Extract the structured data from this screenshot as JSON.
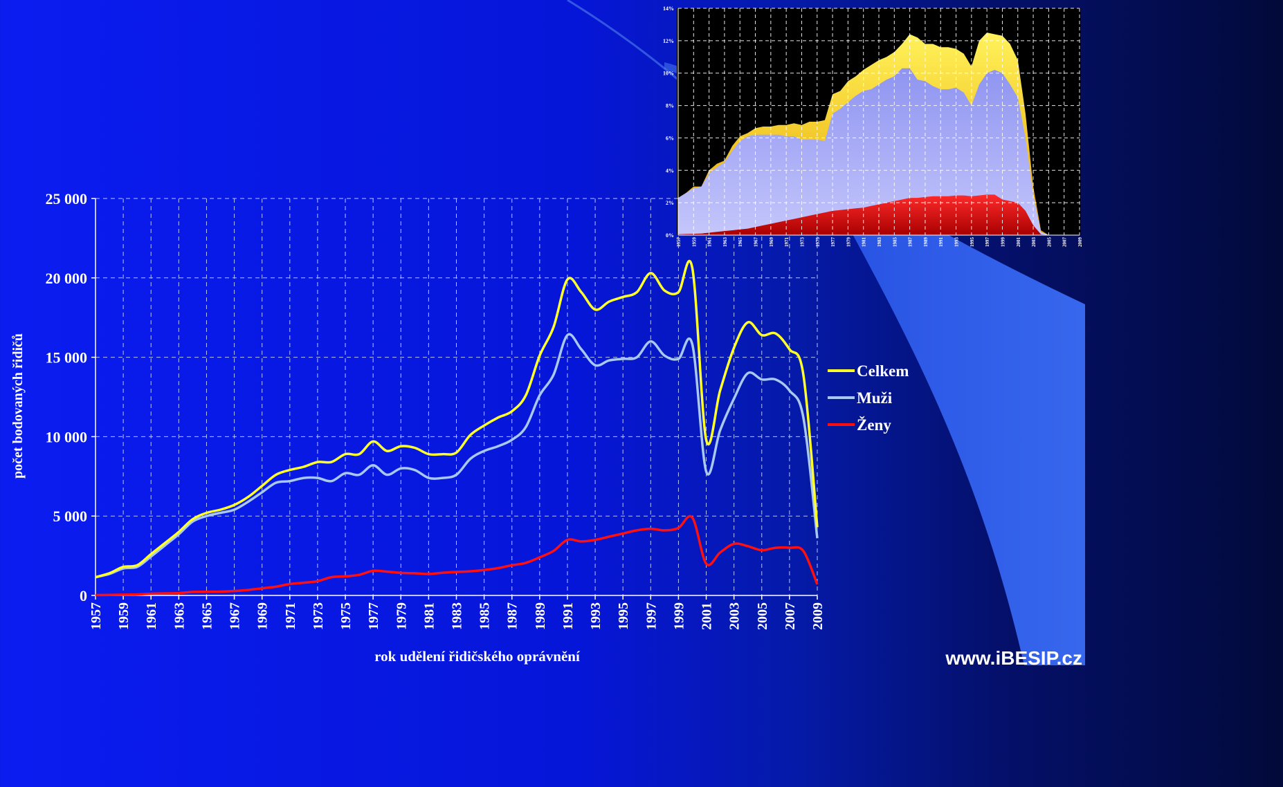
{
  "colors": {
    "celkem": "#ffff2a",
    "muzi": "#a8c8f0",
    "zeny": "#ff1010"
  },
  "chart_data": [
    {
      "type": "line",
      "xlabel": "rok udělení řidičského oprávnění",
      "ylabel": "počet bodovaných řidičů",
      "ylim": [
        0,
        25000
      ],
      "yticks": [
        "0",
        "5 000",
        "10 000",
        "15 000",
        "20 000",
        "25 000"
      ],
      "xlim": [
        1957,
        2009
      ],
      "xticks": [
        "1957",
        "1959",
        "1961",
        "1963",
        "1965",
        "1967",
        "1969",
        "1971",
        "1973",
        "1975",
        "1977",
        "1979",
        "1981",
        "1983",
        "1985",
        "1987",
        "1989",
        "1991",
        "1993",
        "1995",
        "1997",
        "1999",
        "2001",
        "2003",
        "2005",
        "2007",
        "2009"
      ],
      "grid": true,
      "legend": "right",
      "x": [
        1957,
        1958,
        1959,
        1960,
        1961,
        1962,
        1963,
        1964,
        1965,
        1966,
        1967,
        1968,
        1969,
        1970,
        1971,
        1972,
        1973,
        1974,
        1975,
        1976,
        1977,
        1978,
        1979,
        1980,
        1981,
        1982,
        1983,
        1984,
        1985,
        1986,
        1987,
        1988,
        1989,
        1990,
        1991,
        1992,
        1993,
        1994,
        1995,
        1996,
        1997,
        1998,
        1999,
        2000,
        2001,
        2002,
        2003,
        2004,
        2005,
        2006,
        2007,
        2008,
        2009
      ],
      "series": [
        {
          "name": "Celkem",
          "color_key": "celkem",
          "values": [
            1150,
            1400,
            1800,
            1900,
            2600,
            3300,
            4000,
            4800,
            5200,
            5400,
            5700,
            6200,
            6900,
            7600,
            7900,
            8100,
            8400,
            8400,
            8900,
            8900,
            9700,
            9100,
            9400,
            9300,
            8900,
            8900,
            9000,
            10100,
            10700,
            11200,
            11600,
            12600,
            15100,
            16900,
            19900,
            19100,
            18000,
            18500,
            18800,
            19100,
            20300,
            19200,
            19100,
            20600,
            9800,
            12900,
            15600,
            17200,
            16400,
            16500,
            15500,
            13900,
            4300
          ]
        },
        {
          "name": "Muži",
          "color_key": "muzi",
          "values": [
            1150,
            1350,
            1700,
            1800,
            2450,
            3150,
            3850,
            4650,
            5000,
            5200,
            5400,
            5900,
            6500,
            7100,
            7200,
            7400,
            7400,
            7200,
            7700,
            7600,
            8200,
            7600,
            8000,
            7900,
            7400,
            7400,
            7600,
            8600,
            9100,
            9400,
            9800,
            10600,
            12600,
            13900,
            16400,
            15500,
            14500,
            14800,
            14900,
            15000,
            16000,
            15100,
            14900,
            15800,
            7800,
            10400,
            12400,
            14000,
            13600,
            13600,
            12900,
            11200,
            3600
          ]
        },
        {
          "name": "Ženy",
          "color_key": "zeny",
          "values": [
            20,
            30,
            50,
            60,
            110,
            130,
            150,
            220,
            230,
            240,
            280,
            350,
            450,
            550,
            720,
            800,
            900,
            1150,
            1200,
            1300,
            1550,
            1500,
            1420,
            1400,
            1350,
            1430,
            1480,
            1520,
            1600,
            1720,
            1900,
            2050,
            2400,
            2800,
            3500,
            3400,
            3500,
            3700,
            3900,
            4100,
            4200,
            4100,
            4250,
            4900,
            2000,
            2700,
            3250,
            3100,
            2850,
            3000,
            3000,
            2800,
            700
          ]
        }
      ]
    },
    {
      "type": "area",
      "ylim": [
        0,
        14
      ],
      "yticks": [
        "0%",
        "2%",
        "4%",
        "6%",
        "8%",
        "10%",
        "12%",
        "14%"
      ],
      "xlim": [
        1957,
        2009
      ],
      "xticks": [
        "1957",
        "1959",
        "1961",
        "1963",
        "1965",
        "1967",
        "1969",
        "1971",
        "1973",
        "1975",
        "1977",
        "1979",
        "1981",
        "1983",
        "1985",
        "1987",
        "1989",
        "1991",
        "1993",
        "1995",
        "1997",
        "1999",
        "2001",
        "2003",
        "2005",
        "2007",
        "2009"
      ],
      "grid": true,
      "x": [
        1957,
        1958,
        1959,
        1960,
        1961,
        1962,
        1963,
        1964,
        1965,
        1966,
        1967,
        1968,
        1969,
        1970,
        1971,
        1972,
        1973,
        1974,
        1975,
        1976,
        1977,
        1978,
        1979,
        1980,
        1981,
        1982,
        1983,
        1984,
        1985,
        1986,
        1987,
        1988,
        1989,
        1990,
        1991,
        1992,
        1993,
        1994,
        1995,
        1996,
        1997,
        1998,
        1999,
        2000,
        2001,
        2002,
        2003,
        2004,
        2005,
        2006,
        2007,
        2008,
        2009
      ],
      "series": [
        {
          "color_key": "celkem",
          "values": [
            2.3,
            2.6,
            3.0,
            3.0,
            4.0,
            4.4,
            4.6,
            5.5,
            6.1,
            6.3,
            6.6,
            6.7,
            6.7,
            6.8,
            6.8,
            6.9,
            6.8,
            7.0,
            7.0,
            7.1,
            8.7,
            8.9,
            9.5,
            9.8,
            10.2,
            10.5,
            10.8,
            11.0,
            11.3,
            11.8,
            12.4,
            12.2,
            11.8,
            11.8,
            11.6,
            11.6,
            11.5,
            11.2,
            10.4,
            12.0,
            12.5,
            12.4,
            12.3,
            11.8,
            10.8,
            7.5,
            3.0,
            0.3,
            0,
            0,
            0,
            0,
            0
          ]
        },
        {
          "color_key": "muzi",
          "values": [
            2.3,
            2.6,
            2.9,
            3.0,
            3.8,
            4.2,
            4.5,
            5.2,
            5.8,
            6.1,
            6.2,
            6.2,
            6.2,
            6.2,
            6.1,
            6.1,
            5.9,
            5.9,
            5.9,
            5.8,
            7.5,
            7.8,
            8.2,
            8.6,
            8.9,
            9.0,
            9.3,
            9.6,
            9.8,
            10.3,
            10.3,
            9.6,
            9.5,
            9.2,
            9.0,
            9.0,
            9.1,
            8.8,
            8.0,
            9.3,
            10.0,
            10.2,
            10.0,
            9.3,
            8.5,
            6.0,
            2.5,
            0.2,
            0,
            0,
            0,
            0,
            0
          ]
        },
        {
          "color_key": "zeny",
          "values": [
            0.05,
            0.07,
            0.08,
            0.1,
            0.15,
            0.2,
            0.25,
            0.3,
            0.35,
            0.4,
            0.5,
            0.6,
            0.7,
            0.8,
            0.9,
            1.0,
            1.1,
            1.2,
            1.3,
            1.4,
            1.5,
            1.55,
            1.6,
            1.65,
            1.7,
            1.8,
            1.9,
            2.0,
            2.1,
            2.2,
            2.3,
            2.3,
            2.35,
            2.4,
            2.4,
            2.4,
            2.45,
            2.45,
            2.4,
            2.45,
            2.5,
            2.5,
            2.2,
            2.1,
            2.0,
            1.5,
            0.6,
            0.05,
            0,
            0,
            0,
            0,
            0
          ]
        }
      ]
    }
  ],
  "brand": "www.iBESIP.cz"
}
